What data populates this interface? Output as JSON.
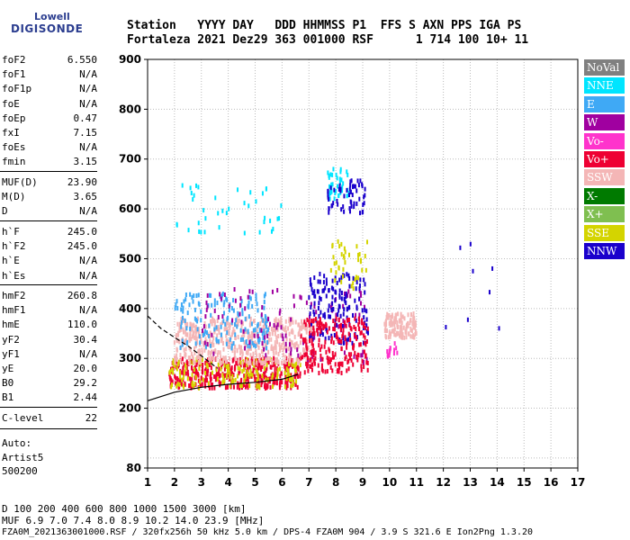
{
  "logo": {
    "line1": "Lowell",
    "line2": "DIGISONDE"
  },
  "header": {
    "row1": "Station   YYYY DAY   DDD HHMMSS P1  FFS S AXN PPS IGA PS",
    "row2": "Fortaleza 2021 Dez29 363 001000 RSF      1 714 100 10+ 11"
  },
  "params_a": [
    {
      "name": "foF2",
      "value": "6.550"
    },
    {
      "name": "foF1",
      "value": "N/A"
    },
    {
      "name": "foF1p",
      "value": "N/A"
    },
    {
      "name": "foE",
      "value": "N/A"
    },
    {
      "name": "foEp",
      "value": "0.47"
    },
    {
      "name": "fxI",
      "value": "7.15"
    },
    {
      "name": "foEs",
      "value": "N/A"
    },
    {
      "name": "fmin",
      "value": "3.15"
    }
  ],
  "params_b": [
    {
      "name": "MUF(D)",
      "value": "23.90"
    },
    {
      "name": "M(D)",
      "value": "3.65"
    },
    {
      "name": "D",
      "value": "N/A"
    }
  ],
  "params_c": [
    {
      "name": "h`F",
      "value": "245.0"
    },
    {
      "name": "h`F2",
      "value": "245.0"
    },
    {
      "name": "h`E",
      "value": "N/A"
    },
    {
      "name": "h`Es",
      "value": "N/A"
    }
  ],
  "params_d": [
    {
      "name": "hmF2",
      "value": "260.8"
    },
    {
      "name": "hmF1",
      "value": "N/A"
    },
    {
      "name": "hmE",
      "value": "110.0"
    },
    {
      "name": "yF2",
      "value": "30.4"
    },
    {
      "name": "yF1",
      "value": "N/A"
    },
    {
      "name": "yE",
      "value": "20.0"
    },
    {
      "name": "B0",
      "value": "29.2"
    },
    {
      "name": "B1",
      "value": "2.44"
    }
  ],
  "params_e": [
    {
      "name": "C-level",
      "value": "22"
    }
  ],
  "auto": {
    "l1": "Auto:",
    "l2": "Artist5",
    "l3": "500200"
  },
  "legend": [
    {
      "label": "NoVal",
      "color": "#808080"
    },
    {
      "label": "NNE",
      "color": "#00e5ff"
    },
    {
      "label": "E",
      "color": "#3fa9f5"
    },
    {
      "label": "W",
      "color": "#a000a0"
    },
    {
      "label": "Vo-",
      "color": "#ff33cc"
    },
    {
      "label": "Vo+",
      "color": "#ee0033"
    },
    {
      "label": "SSW",
      "color": "#f4b6b6"
    },
    {
      "label": "X-",
      "color": "#007a00"
    },
    {
      "label": "X+",
      "color": "#7fbf50"
    },
    {
      "label": "SSE",
      "color": "#d4d400"
    },
    {
      "label": "NNW",
      "color": "#1a00cc"
    }
  ],
  "footer": {
    "l1": "D     100  200  400  600  800 1000 1500 3000 [km]",
    "l2": "MUF   6.9  7.0  7.4  8.0  8.9 10.2 14.0 23.9 [MHz]",
    "l3": "FZA0M_2021363001000.RSF / 320fx256h 50 kHz 5.0 km / DPS-4 FZA0M 904 / 3.9 S 321.6 E   Ion2Png 1.3.20"
  },
  "chart_data": {
    "type": "scatter",
    "xlabel": "",
    "ylabel": "",
    "xlim": [
      1,
      17
    ],
    "ylim": [
      80,
      900
    ],
    "x_ticks": [
      1,
      2,
      3,
      4,
      5,
      6,
      7,
      8,
      9,
      10,
      11,
      12,
      13,
      14,
      15,
      16,
      17
    ],
    "y_ticks": [
      80,
      200,
      300,
      400,
      500,
      600,
      700,
      800,
      900
    ],
    "grid": true,
    "legend_position": "right",
    "clusters": [
      {
        "direction": "Vo+",
        "x_range": [
          1.8,
          6.7
        ],
        "y_range": [
          240,
          300
        ],
        "count": 420
      },
      {
        "direction": "SSE",
        "x_range": [
          1.8,
          6.7
        ],
        "y_range": [
          240,
          300
        ],
        "count": 160
      },
      {
        "direction": "SSW",
        "x_range": [
          2.0,
          7.2
        ],
        "y_range": [
          290,
          380
        ],
        "count": 520
      },
      {
        "direction": "E",
        "x_range": [
          2.0,
          5.5
        ],
        "y_range": [
          320,
          430
        ],
        "count": 160
      },
      {
        "direction": "W",
        "x_range": [
          3.0,
          9.2
        ],
        "y_range": [
          290,
          440
        ],
        "count": 120
      },
      {
        "direction": "NNW",
        "x_range": [
          7.0,
          9.2
        ],
        "y_range": [
          330,
          470
        ],
        "count": 150
      },
      {
        "direction": "Vo+",
        "x_range": [
          6.7,
          9.2
        ],
        "y_range": [
          270,
          380
        ],
        "count": 220
      },
      {
        "direction": "SSW",
        "x_range": [
          9.8,
          11.0
        ],
        "y_range": [
          340,
          390
        ],
        "count": 120
      },
      {
        "direction": "SSE",
        "x_range": [
          7.8,
          9.2
        ],
        "y_range": [
          440,
          540
        ],
        "count": 40
      },
      {
        "direction": "NNE",
        "x_range": [
          7.7,
          8.5
        ],
        "y_range": [
          620,
          680
        ],
        "count": 40
      },
      {
        "direction": "NNW",
        "x_range": [
          7.7,
          9.1
        ],
        "y_range": [
          590,
          660
        ],
        "count": 60
      },
      {
        "direction": "NNE",
        "x_range": [
          2.0,
          6.0
        ],
        "y_range": [
          550,
          650
        ],
        "count": 40
      },
      {
        "direction": "Vo-",
        "x_range": [
          9.9,
          10.3
        ],
        "y_range": [
          300,
          330
        ],
        "count": 15
      },
      {
        "direction": "NNW",
        "x_range": [
          11.8,
          14.2
        ],
        "y_range": [
          340,
          530
        ],
        "count": 8
      }
    ],
    "traces": [
      {
        "name": "solid",
        "x": [
          1.0,
          2.0,
          3.0,
          4.0,
          5.0,
          6.0,
          6.6
        ],
        "y": [
          215,
          232,
          242,
          248,
          252,
          258,
          268
        ]
      },
      {
        "name": "dashed",
        "x": [
          1.0,
          1.5,
          2.0,
          2.5,
          3.0,
          3.6
        ],
        "y": [
          385,
          360,
          342,
          325,
          305,
          280
        ]
      }
    ]
  }
}
